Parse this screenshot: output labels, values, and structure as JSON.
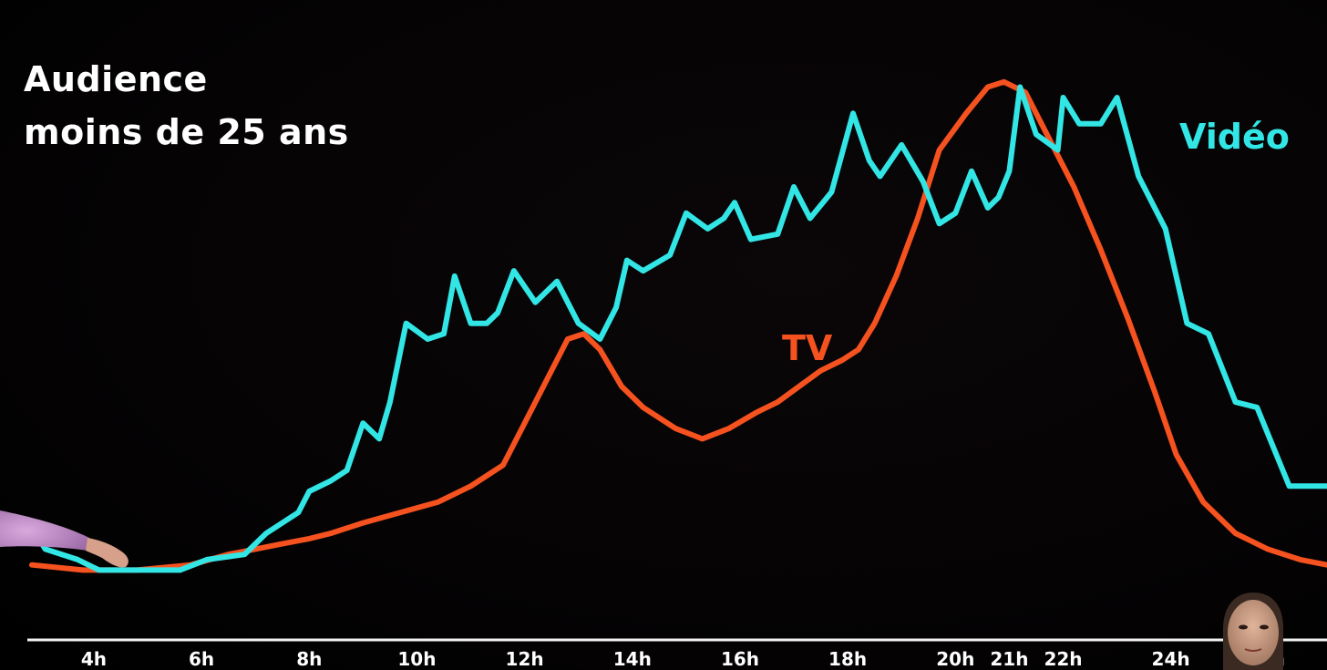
{
  "chart_data": {
    "type": "line",
    "title_lines": [
      "Audience",
      "moins de 25 ans"
    ],
    "x_ticks": [
      "4h",
      "6h",
      "8h",
      "10h",
      "12h",
      "14h",
      "16h",
      "18h",
      "20h",
      "21h",
      "22h",
      "24h",
      "h"
    ],
    "x_tick_values": [
      4,
      6,
      8,
      10,
      12,
      14,
      16,
      18,
      20,
      21,
      22,
      24,
      26
    ],
    "xlim": [
      2.8,
      26.9
    ],
    "ylim": [
      0,
      100
    ],
    "grid": false,
    "legend": "inline labels",
    "series": [
      {
        "name": "Vidéo",
        "color": "#33e6e6",
        "points": [
          [
            2.85,
            14
          ],
          [
            3.1,
            10
          ],
          [
            3.7,
            8
          ],
          [
            4.1,
            6
          ],
          [
            4.8,
            6
          ],
          [
            5.6,
            6
          ],
          [
            6.1,
            8
          ],
          [
            6.8,
            9
          ],
          [
            7.2,
            13
          ],
          [
            7.8,
            17
          ],
          [
            8.0,
            21
          ],
          [
            8.4,
            23
          ],
          [
            8.7,
            25
          ],
          [
            9.0,
            34
          ],
          [
            9.3,
            31
          ],
          [
            9.5,
            38
          ],
          [
            9.8,
            53
          ],
          [
            10.2,
            50
          ],
          [
            10.5,
            51
          ],
          [
            10.7,
            62
          ],
          [
            11.0,
            53
          ],
          [
            11.3,
            53
          ],
          [
            11.5,
            55
          ],
          [
            11.8,
            63
          ],
          [
            12.2,
            57
          ],
          [
            12.6,
            61
          ],
          [
            13.0,
            53
          ],
          [
            13.4,
            50
          ],
          [
            13.7,
            56
          ],
          [
            13.9,
            65
          ],
          [
            14.2,
            63
          ],
          [
            14.7,
            66
          ],
          [
            15.0,
            74
          ],
          [
            15.4,
            71
          ],
          [
            15.7,
            73
          ],
          [
            15.9,
            76
          ],
          [
            16.2,
            69
          ],
          [
            16.7,
            70
          ],
          [
            17.0,
            79
          ],
          [
            17.3,
            73
          ],
          [
            17.7,
            78
          ],
          [
            18.1,
            93
          ],
          [
            18.4,
            84
          ],
          [
            18.6,
            81
          ],
          [
            19.0,
            87
          ],
          [
            19.4,
            80
          ],
          [
            19.7,
            72
          ],
          [
            20.0,
            74
          ],
          [
            20.3,
            82
          ],
          [
            20.6,
            75
          ],
          [
            20.8,
            77
          ],
          [
            21.0,
            82
          ],
          [
            21.2,
            98
          ],
          [
            21.5,
            89
          ],
          [
            21.9,
            86
          ],
          [
            22.0,
            96
          ],
          [
            22.3,
            91
          ],
          [
            22.7,
            91
          ],
          [
            23.0,
            96
          ],
          [
            23.4,
            81
          ],
          [
            23.9,
            71
          ],
          [
            24.3,
            53
          ],
          [
            24.7,
            51
          ],
          [
            25.2,
            38
          ],
          [
            25.6,
            37
          ],
          [
            26.2,
            22
          ],
          [
            26.9,
            22
          ]
        ]
      },
      {
        "name": "TV",
        "color": "#f5521f",
        "points": [
          [
            2.85,
            7
          ],
          [
            3.8,
            6
          ],
          [
            4.8,
            6
          ],
          [
            5.8,
            7
          ],
          [
            6.5,
            9
          ],
          [
            7.0,
            10
          ],
          [
            7.5,
            11
          ],
          [
            8.0,
            12
          ],
          [
            8.4,
            13
          ],
          [
            9.0,
            15
          ],
          [
            9.7,
            17
          ],
          [
            10.4,
            19
          ],
          [
            11.0,
            22
          ],
          [
            11.6,
            26
          ],
          [
            12.0,
            34
          ],
          [
            12.4,
            42
          ],
          [
            12.8,
            50
          ],
          [
            13.1,
            51
          ],
          [
            13.4,
            48
          ],
          [
            13.8,
            41
          ],
          [
            14.2,
            37
          ],
          [
            14.8,
            33
          ],
          [
            15.3,
            31
          ],
          [
            15.8,
            33
          ],
          [
            16.3,
            36
          ],
          [
            16.7,
            38
          ],
          [
            17.1,
            41
          ],
          [
            17.5,
            44
          ],
          [
            17.9,
            46
          ],
          [
            18.2,
            48
          ],
          [
            18.5,
            53
          ],
          [
            18.9,
            62
          ],
          [
            19.3,
            73
          ],
          [
            19.7,
            86
          ],
          [
            20.2,
            93
          ],
          [
            20.6,
            98
          ],
          [
            20.9,
            99
          ],
          [
            21.3,
            97
          ],
          [
            21.7,
            89
          ],
          [
            22.2,
            79
          ],
          [
            22.7,
            67
          ],
          [
            23.2,
            54
          ],
          [
            23.7,
            40
          ],
          [
            24.1,
            28
          ],
          [
            24.6,
            19
          ],
          [
            25.2,
            13
          ],
          [
            25.8,
            10
          ],
          [
            26.4,
            8
          ],
          [
            26.9,
            7
          ]
        ]
      }
    ]
  }
}
